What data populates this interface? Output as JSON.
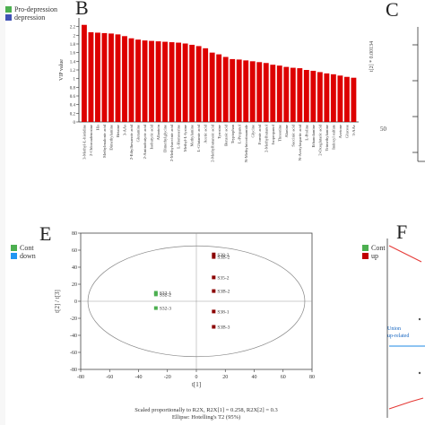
{
  "panels": {
    "b_letter": "B",
    "c_letter": "C",
    "e_letter": "E",
    "f_letter": "F"
  },
  "top_left_legend": {
    "items": [
      {
        "label": "Pro-depression",
        "color": "#4caf50"
      },
      {
        "label": "depression",
        "color": "#3f51b5"
      }
    ]
  },
  "bar_chart": {
    "chart_data": {
      "type": "bar",
      "ylabel": "VIP value",
      "ylim": [
        0,
        2.4
      ],
      "yticks": [
        0,
        0.2,
        0.4,
        0.6,
        0.8,
        1,
        1.2,
        1.4,
        1.6,
        1.8,
        2,
        2.2
      ],
      "bar_color": "#dd0000",
      "categories": [
        "3-Methyl-L-histidine",
        "2-Chloroadenosine",
        "His",
        "Methylmalonic acid",
        "Dimethylamine",
        "Betaine",
        "3-AAs",
        "2-Ethylhexanoic acid",
        "Glutamine",
        "2-Aminobutyric acid",
        "Isobutyric acid",
        "Allantoin",
        "Dimethylglycine",
        "2-Methylsuccinic acid",
        "L-Homoserine",
        "Methyl-L-lysine",
        "Methylamine",
        "L-Glutamic acid",
        "Acetic acid",
        "2-Methylbutanoic acid",
        "Tyrosine",
        "Benzoic acid",
        "Tryptophan",
        "L-Propanol",
        "N-Methylnicotinamide",
        "Glycine",
        "Formic acid",
        "2-Methylbutanol",
        "Isopropanol",
        "Threonine",
        "Alanine",
        "Succinic acid",
        "N-Acetylaspartic acid",
        "L-Proline",
        "Ethanolamine",
        "2-Oxoglutaric acid",
        "Trimethylamine",
        "Indoxyl sulfate",
        "Acetone",
        "Glucose",
        "3-AAc"
      ],
      "values": [
        2.24,
        2.07,
        2.06,
        2.05,
        2.04,
        2.02,
        1.98,
        1.93,
        1.9,
        1.88,
        1.87,
        1.86,
        1.85,
        1.84,
        1.83,
        1.81,
        1.78,
        1.75,
        1.7,
        1.6,
        1.56,
        1.5,
        1.45,
        1.44,
        1.42,
        1.4,
        1.38,
        1.36,
        1.32,
        1.3,
        1.27,
        1.25,
        1.24,
        1.2,
        1.18,
        1.15,
        1.12,
        1.1,
        1.07,
        1.04,
        1.02
      ]
    }
  },
  "scatter_chart": {
    "legend_left": [
      {
        "label": "Cont",
        "color": "#4caf50"
      },
      {
        "label": "down",
        "color": "#2196f3"
      }
    ],
    "legend_right": [
      {
        "label": "Cont",
        "color": "#4caf50"
      },
      {
        "label": "up",
        "color": "#c00000"
      }
    ],
    "footer_line1": "Scaled proportionally to R2X, R2X[1] = 0.258, R2X[2] = 0.3",
    "footer_line2": "Ellipse: Hotelling's T2 (95%)",
    "chart_data": {
      "type": "scatter",
      "xlabel": "t[1]",
      "ylabel": "t[2] / t[3]",
      "xlim": [
        -80,
        80
      ],
      "ylim": [
        -80,
        80
      ],
      "xticks": [
        -80,
        -60,
        -40,
        -20,
        0,
        20,
        40,
        60,
        80
      ],
      "yticks": [
        -80,
        -60,
        -40,
        -20,
        0,
        20,
        40,
        60,
        80
      ],
      "series": [
        {
          "name": "Cont",
          "color": "#4caf50",
          "points": [
            {
              "label": "S32-1",
              "x": -28,
              "y": 10
            },
            {
              "label": "S32-2",
              "x": -28,
              "y": 8
            },
            {
              "label": "S32-3",
              "x": -28,
              "y": -8
            }
          ]
        },
        {
          "name": "up",
          "color": "#8b0000",
          "points": [
            {
              "label": "S38-2",
              "x": 12,
              "y": 55
            },
            {
              "label": "S3B-2",
              "x": 12,
              "y": 52
            },
            {
              "label": "S35-2",
              "x": 12,
              "y": 28
            },
            {
              "label": "S3B-2",
              "x": 12,
              "y": 12
            },
            {
              "label": "S38-1",
              "x": 12,
              "y": -12
            },
            {
              "label": "S3B-3",
              "x": 12,
              "y": -30
            }
          ]
        }
      ]
    }
  },
  "side_fragments": {
    "c_ylabel": "t[2] * 0.00134",
    "c_tick_50": "50",
    "f_label_1": "Union",
    "f_label_2": "up-related"
  }
}
